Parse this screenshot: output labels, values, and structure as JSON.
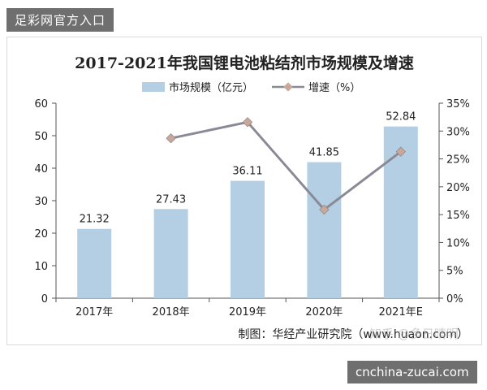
{
  "site_tag": "足彩网官方入口",
  "domain_tag": "cnchina-zucai.com",
  "watermark": "知乎 @多日晴明",
  "source": "制图：华经产业研究院（www.huaon.com）",
  "colors": {
    "bar": "#b4cfe3",
    "line": "#8a8a96",
    "marker": "#c8a89a",
    "text": "#222222"
  },
  "chart_data": {
    "type": "bar",
    "title": "2017-2021年我国锂电池粘结剂市场规模及增速",
    "categories": [
      "2017年",
      "2018年",
      "2019年",
      "2020年",
      "2021年E"
    ],
    "series": [
      {
        "name": "市场规模（亿元）",
        "type": "bar",
        "axis": "left",
        "values": [
          21.32,
          27.43,
          36.11,
          41.85,
          52.84
        ],
        "labels": [
          "21.32",
          "27.43",
          "36.11",
          "41.85",
          "52.84"
        ]
      },
      {
        "name": "增速（%）",
        "type": "line",
        "axis": "right",
        "values": [
          null,
          28.7,
          31.6,
          15.9,
          26.3
        ]
      }
    ],
    "ylim": [
      0,
      60
    ],
    "yticks": [
      "0",
      "10",
      "20",
      "30",
      "40",
      "50",
      "60"
    ],
    "y2lim": [
      0,
      35
    ],
    "y2ticks": [
      "0%",
      "5%",
      "10%",
      "15%",
      "20%",
      "25%",
      "30%",
      "35%"
    ],
    "legend": "top-center",
    "grid": false
  }
}
